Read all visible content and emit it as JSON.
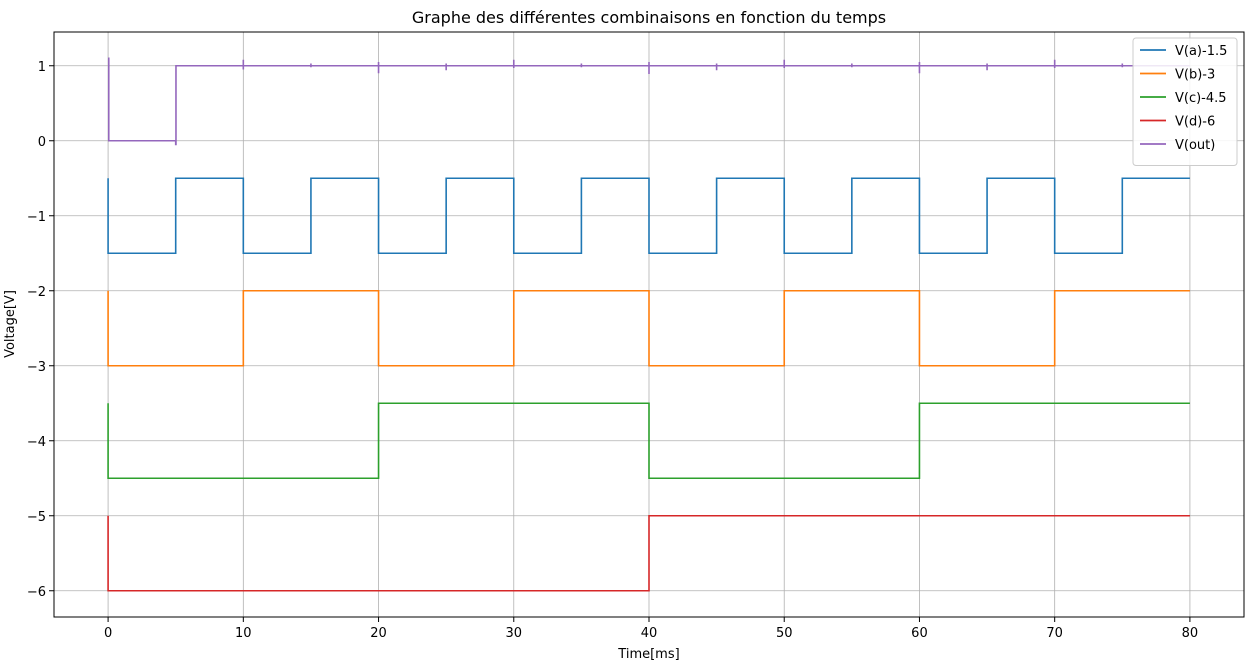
{
  "chart_data": {
    "type": "line",
    "title": "Graphe des différentes combinaisons en fonction du temps",
    "xlabel": "Time[ms]",
    "ylabel": "Voltage[V]",
    "xlim": [
      -4,
      84
    ],
    "ylim": [
      -6.35,
      1.45
    ],
    "xticks": [
      0,
      10,
      20,
      30,
      40,
      50,
      60,
      70,
      80
    ],
    "yticks": [
      1,
      0,
      -1,
      -2,
      -3,
      -4,
      -5,
      -6
    ],
    "ytick_labels": [
      "1",
      "0",
      "−1",
      "−2",
      "−3",
      "−4",
      "−5",
      "−6"
    ],
    "grid": true,
    "legend_position": "top-right",
    "series": [
      {
        "name": "V(a)-1.5",
        "color": "#1f77b4",
        "x": [
          0,
          0,
          5,
          5,
          10,
          10,
          15,
          15,
          20,
          20,
          25,
          25,
          30,
          30,
          35,
          35,
          40,
          40,
          45,
          45,
          50,
          50,
          55,
          55,
          60,
          60,
          65,
          65,
          70,
          70,
          75,
          75,
          80
        ],
        "y": [
          -0.5,
          -1.5,
          -1.5,
          -0.5,
          -0.5,
          -1.5,
          -1.5,
          -0.5,
          -0.5,
          -1.5,
          -1.5,
          -0.5,
          -0.5,
          -1.5,
          -1.5,
          -0.5,
          -0.5,
          -1.5,
          -1.5,
          -0.5,
          -0.5,
          -1.5,
          -1.5,
          -0.5,
          -0.5,
          -1.5,
          -1.5,
          -0.5,
          -0.5,
          -1.5,
          -1.5,
          -0.5,
          -0.5
        ]
      },
      {
        "name": "V(b)-3",
        "color": "#ff7f0e",
        "x": [
          0,
          0,
          10,
          10,
          20,
          20,
          30,
          30,
          40,
          40,
          50,
          50,
          60,
          60,
          70,
          70,
          80
        ],
        "y": [
          -2,
          -3,
          -3,
          -2,
          -2,
          -3,
          -3,
          -2,
          -2,
          -3,
          -3,
          -2,
          -2,
          -3,
          -3,
          -2,
          -2
        ]
      },
      {
        "name": "V(c)-4.5",
        "color": "#2ca02c",
        "x": [
          0,
          0,
          20,
          20,
          40,
          40,
          60,
          60,
          80
        ],
        "y": [
          -3.5,
          -4.5,
          -4.5,
          -3.5,
          -3.5,
          -4.5,
          -4.5,
          -3.5,
          -3.5
        ]
      },
      {
        "name": "V(d)-6",
        "color": "#d62728",
        "x": [
          0,
          0,
          40,
          40,
          80
        ],
        "y": [
          -5,
          -6,
          -6,
          -5,
          -5
        ]
      },
      {
        "name": "V(out)",
        "color": "#9467bd",
        "x": [
          0,
          0.05,
          0.05,
          5,
          5,
          5.02,
          5.02,
          10,
          10,
          10,
          10,
          15,
          15,
          15,
          15,
          20,
          20,
          20,
          20,
          25,
          25,
          25,
          25,
          30,
          30,
          30,
          30,
          35,
          35,
          35,
          35,
          40,
          40,
          40,
          40,
          45,
          45,
          45,
          45,
          50,
          50,
          50,
          50,
          55,
          55,
          55,
          55,
          60,
          60,
          60,
          60,
          65,
          65,
          65,
          65,
          70,
          70,
          70,
          70,
          75,
          75,
          75,
          75,
          80
        ],
        "y": [
          1.1,
          1.1,
          0,
          0,
          -0.05,
          -0.05,
          1,
          1,
          1.08,
          0.95,
          1,
          1,
          1.03,
          0.98,
          1,
          1,
          0.9,
          1.05,
          1,
          1,
          0.94,
          1.03,
          1,
          1,
          1.08,
          0.97,
          1,
          1,
          1.03,
          0.98,
          1,
          1,
          0.89,
          1.05,
          1,
          1,
          0.94,
          1.03,
          1,
          1,
          1.08,
          0.97,
          1,
          1,
          1.03,
          0.98,
          1,
          1,
          0.9,
          1.05,
          1,
          1,
          0.94,
          1.03,
          1,
          1,
          1.08,
          0.97,
          1,
          1,
          1.03,
          0.98,
          1,
          1
        ]
      }
    ]
  }
}
